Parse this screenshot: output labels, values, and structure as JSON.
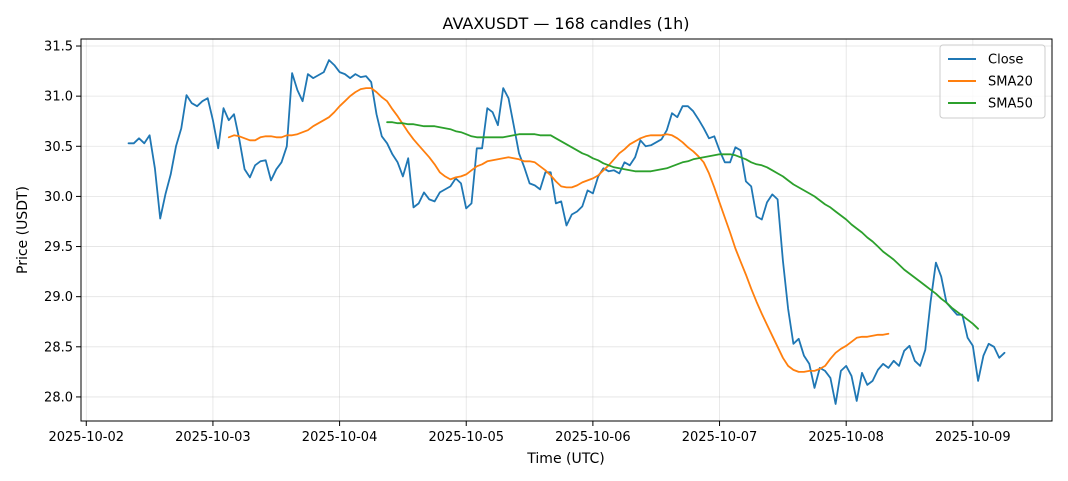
{
  "chart_data": {
    "type": "line",
    "title": "AVAXUSDT — 168 candles (1h)",
    "xlabel": "Time (UTC)",
    "ylabel": "Price (USDT)",
    "x_start": "2025-10-02T08:00",
    "x_interval": "1h",
    "xlim": [
      "2025-10-01T23:00",
      "2025-10-09T15:00"
    ],
    "ylim": [
      27.76,
      31.57
    ],
    "x_ticks": [
      "2025-10-02",
      "2025-10-03",
      "2025-10-04",
      "2025-10-05",
      "2025-10-06",
      "2025-10-07",
      "2025-10-08",
      "2025-10-09"
    ],
    "y_ticks": [
      28.0,
      28.5,
      29.0,
      29.5,
      30.0,
      30.5,
      31.0,
      31.5
    ],
    "y_tick_labels": [
      "28.0",
      "28.5",
      "29.0",
      "29.5",
      "30.0",
      "30.5",
      "31.0",
      "31.5"
    ],
    "grid": true,
    "legend": "top-right",
    "series": [
      {
        "name": "Close",
        "color": "#1f77b4",
        "values": [
          30.53,
          30.53,
          30.58,
          30.53,
          30.61,
          30.28,
          29.78,
          30.02,
          30.22,
          30.5,
          30.68,
          31.01,
          30.93,
          30.9,
          30.95,
          30.98,
          30.76,
          30.48,
          30.88,
          30.76,
          30.82,
          30.57,
          30.27,
          30.19,
          30.31,
          30.35,
          30.36,
          30.16,
          30.27,
          30.34,
          30.5,
          31.23,
          31.06,
          30.95,
          31.22,
          31.18,
          31.21,
          31.24,
          31.36,
          31.31,
          31.24,
          31.22,
          31.18,
          31.22,
          31.19,
          31.2,
          31.14,
          30.82,
          30.6,
          30.53,
          30.42,
          30.34,
          30.2,
          30.38,
          29.89,
          29.93,
          30.04,
          29.97,
          29.95,
          30.04,
          30.07,
          30.1,
          30.18,
          30.13,
          29.88,
          29.93,
          30.48,
          30.48,
          30.88,
          30.84,
          30.71,
          31.08,
          30.98,
          30.71,
          30.43,
          30.29,
          30.13,
          30.11,
          30.07,
          30.24,
          30.24,
          29.93,
          29.95,
          29.71,
          29.82,
          29.85,
          29.9,
          30.06,
          30.03,
          30.2,
          30.28,
          30.25,
          30.26,
          30.23,
          30.34,
          30.31,
          30.39,
          30.56,
          30.5,
          30.51,
          30.54,
          30.57,
          30.66,
          30.83,
          30.79,
          30.9,
          30.9,
          30.85,
          30.77,
          30.68,
          30.58,
          30.6,
          30.46,
          30.34,
          30.34,
          30.49,
          30.46,
          30.15,
          30.1,
          29.8,
          29.77,
          29.94,
          30.02,
          29.97,
          29.36,
          28.88,
          28.53,
          28.58,
          28.41,
          28.33,
          28.09,
          28.29,
          28.26,
          28.19,
          27.93,
          28.26,
          28.31,
          28.21,
          27.96,
          28.24,
          28.12,
          28.16,
          28.27,
          28.33,
          28.29,
          28.36,
          28.31,
          28.46,
          28.51,
          28.36,
          28.31,
          28.47,
          28.95,
          29.34,
          29.2,
          28.94,
          28.88,
          28.82,
          28.82,
          28.59,
          28.51,
          28.16,
          28.41,
          28.53,
          28.5,
          28.39,
          28.44
        ]
      },
      {
        "name": "SMA20",
        "color": "#ff7f0e",
        "start_index": 19,
        "values": [
          30.59,
          30.61,
          30.6,
          30.58,
          30.56,
          30.56,
          30.59,
          30.6,
          30.6,
          30.59,
          30.59,
          30.61,
          30.61,
          30.62,
          30.64,
          30.66,
          30.7,
          30.73,
          30.76,
          30.79,
          30.84,
          30.9,
          30.95,
          31.0,
          31.04,
          31.07,
          31.08,
          31.08,
          31.04,
          30.99,
          30.95,
          30.87,
          30.8,
          30.72,
          30.64,
          30.57,
          30.51,
          30.45,
          30.39,
          30.32,
          30.24,
          30.2,
          30.17,
          30.19,
          30.2,
          30.22,
          30.26,
          30.3,
          30.32,
          30.35,
          30.36,
          30.37,
          30.38,
          30.39,
          30.38,
          30.37,
          30.35,
          30.35,
          30.34,
          30.3,
          30.26,
          30.21,
          30.15,
          30.1,
          30.09,
          30.09,
          30.11,
          30.14,
          30.16,
          30.18,
          30.21,
          30.26,
          30.31,
          30.37,
          30.43,
          30.47,
          30.52,
          30.55,
          30.58,
          30.6,
          30.61,
          30.61,
          30.61,
          30.62,
          30.61,
          30.58,
          30.54,
          30.49,
          30.45,
          30.4,
          30.34,
          30.23,
          30.09,
          29.94,
          29.79,
          29.64,
          29.48,
          29.35,
          29.22,
          29.08,
          28.95,
          28.83,
          28.72,
          28.61,
          28.5,
          28.39,
          28.31,
          28.27,
          28.25,
          28.25,
          28.26,
          28.26,
          28.28,
          28.31,
          28.38,
          28.44,
          28.48,
          28.51,
          28.55,
          28.59,
          28.6,
          28.6,
          28.61,
          28.62,
          28.62,
          28.63
        ]
      },
      {
        "name": "SMA50",
        "color": "#2ca02c",
        "start_index": 49,
        "values": [
          30.74,
          30.74,
          30.73,
          30.73,
          30.72,
          30.72,
          30.71,
          30.7,
          30.7,
          30.7,
          30.69,
          30.68,
          30.67,
          30.65,
          30.64,
          30.62,
          30.6,
          30.59,
          30.59,
          30.59,
          30.59,
          30.59,
          30.59,
          30.6,
          30.61,
          30.62,
          30.62,
          30.62,
          30.62,
          30.61,
          30.61,
          30.61,
          30.58,
          30.55,
          30.52,
          30.49,
          30.46,
          30.43,
          30.41,
          30.38,
          30.36,
          30.33,
          30.31,
          30.29,
          30.28,
          30.27,
          30.26,
          30.25,
          30.25,
          30.25,
          30.25,
          30.26,
          30.27,
          30.28,
          30.3,
          30.32,
          30.34,
          30.35,
          30.37,
          30.38,
          30.39,
          30.4,
          30.41,
          30.42,
          30.42,
          30.42,
          30.41,
          30.39,
          30.37,
          30.34,
          30.32,
          30.31,
          30.29,
          30.26,
          30.23,
          30.2,
          30.16,
          30.12,
          30.09,
          30.06,
          30.03,
          30.0,
          29.96,
          29.92,
          29.89,
          29.85,
          29.81,
          29.77,
          29.72,
          29.68,
          29.64,
          29.59,
          29.55,
          29.5,
          29.45,
          29.41,
          29.37,
          29.32,
          29.27,
          29.23,
          29.19,
          29.15,
          29.11,
          29.07,
          29.03,
          28.98,
          28.94,
          28.89,
          28.85,
          28.81,
          28.77,
          28.73,
          28.68
        ]
      }
    ]
  }
}
